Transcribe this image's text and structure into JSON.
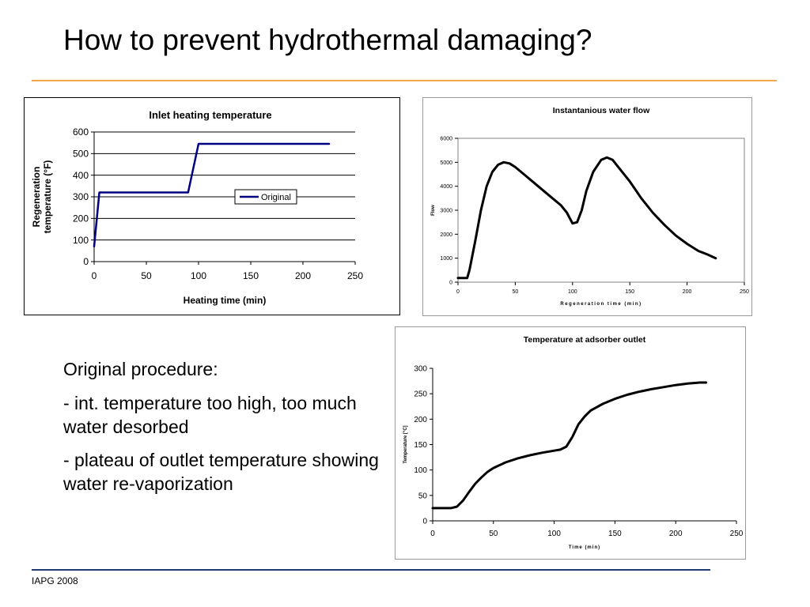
{
  "slide": {
    "title": "How to prevent hydrothermal damaging?",
    "accent_color": "#f5a54a",
    "footer_rule_color": "#1f3b73",
    "footer": "IAPG 2008"
  },
  "text": {
    "heading": "Original procedure:",
    "bullet1": "- int. temperature too high, too much water desorbed",
    "bullet2": "- plateau of outlet temperature showing water re-vaporization"
  },
  "chart_data": [
    {
      "type": "line",
      "title": "Inlet heating temperature",
      "xlabel": "Heating time (min)",
      "ylabel": "Regeneration temperature (°F)",
      "xlim": [
        0,
        250
      ],
      "ylim": [
        0,
        600
      ],
      "xticks": [
        0,
        50,
        100,
        150,
        200,
        250
      ],
      "yticks": [
        0,
        100,
        200,
        300,
        400,
        500,
        600
      ],
      "grid": "horizontal",
      "legend": "right",
      "line_color": "#000080",
      "series": [
        {
          "name": "Original",
          "points": [
            [
              0,
              70
            ],
            [
              5,
              320
            ],
            [
              90,
              320
            ],
            [
              100,
              545
            ],
            [
              225,
              545
            ]
          ]
        }
      ]
    },
    {
      "type": "line",
      "title": "Instantanious water flow",
      "xlabel": "Regeneration time (min)",
      "ylabel": "Flow",
      "xlim": [
        0,
        250
      ],
      "ylim": [
        0,
        6000
      ],
      "xticks": [
        0,
        50,
        100,
        150,
        200,
        250
      ],
      "yticks": [
        0,
        1000,
        2000,
        3000,
        4000,
        5000,
        6000
      ],
      "grid": "none",
      "line_color": "#000000",
      "series": [
        {
          "points": [
            [
              0,
              170
            ],
            [
              8,
              170
            ],
            [
              10,
              500
            ],
            [
              15,
              1700
            ],
            [
              20,
              3000
            ],
            [
              25,
              4000
            ],
            [
              30,
              4600
            ],
            [
              35,
              4900
            ],
            [
              40,
              5000
            ],
            [
              45,
              4950
            ],
            [
              50,
              4800
            ],
            [
              60,
              4400
            ],
            [
              70,
              4000
            ],
            [
              80,
              3600
            ],
            [
              90,
              3200
            ],
            [
              95,
              2900
            ],
            [
              100,
              2450
            ],
            [
              104,
              2500
            ],
            [
              108,
              3000
            ],
            [
              112,
              3800
            ],
            [
              118,
              4600
            ],
            [
              125,
              5100
            ],
            [
              130,
              5200
            ],
            [
              135,
              5100
            ],
            [
              140,
              4800
            ],
            [
              150,
              4200
            ],
            [
              160,
              3500
            ],
            [
              170,
              2900
            ],
            [
              180,
              2400
            ],
            [
              190,
              1950
            ],
            [
              200,
              1600
            ],
            [
              210,
              1300
            ],
            [
              218,
              1150
            ],
            [
              225,
              1000
            ]
          ]
        }
      ]
    },
    {
      "type": "line",
      "title": "Temperature at adsorber outlet",
      "xlabel": "Time (min)",
      "ylabel": "Temperature [°C]",
      "xlim": [
        0,
        250
      ],
      "ylim": [
        0,
        300
      ],
      "xticks": [
        0,
        50,
        100,
        150,
        200,
        250
      ],
      "yticks": [
        0,
        50,
        100,
        150,
        200,
        250,
        300
      ],
      "grid": "none",
      "line_color": "#000000",
      "series": [
        {
          "points": [
            [
              0,
              25
            ],
            [
              15,
              25
            ],
            [
              20,
              28
            ],
            [
              25,
              40
            ],
            [
              30,
              57
            ],
            [
              35,
              73
            ],
            [
              40,
              85
            ],
            [
              45,
              96
            ],
            [
              50,
              104
            ],
            [
              60,
              115
            ],
            [
              70,
              123
            ],
            [
              80,
              129
            ],
            [
              90,
              134
            ],
            [
              100,
              138
            ],
            [
              105,
              140
            ],
            [
              110,
              146
            ],
            [
              115,
              165
            ],
            [
              120,
              190
            ],
            [
              125,
              205
            ],
            [
              130,
              217
            ],
            [
              140,
              230
            ],
            [
              150,
              240
            ],
            [
              160,
              248
            ],
            [
              170,
              254
            ],
            [
              180,
              259
            ],
            [
              190,
              263
            ],
            [
              200,
              267
            ],
            [
              210,
              270
            ],
            [
              220,
              272
            ],
            [
              225,
              272
            ]
          ]
        }
      ]
    }
  ]
}
